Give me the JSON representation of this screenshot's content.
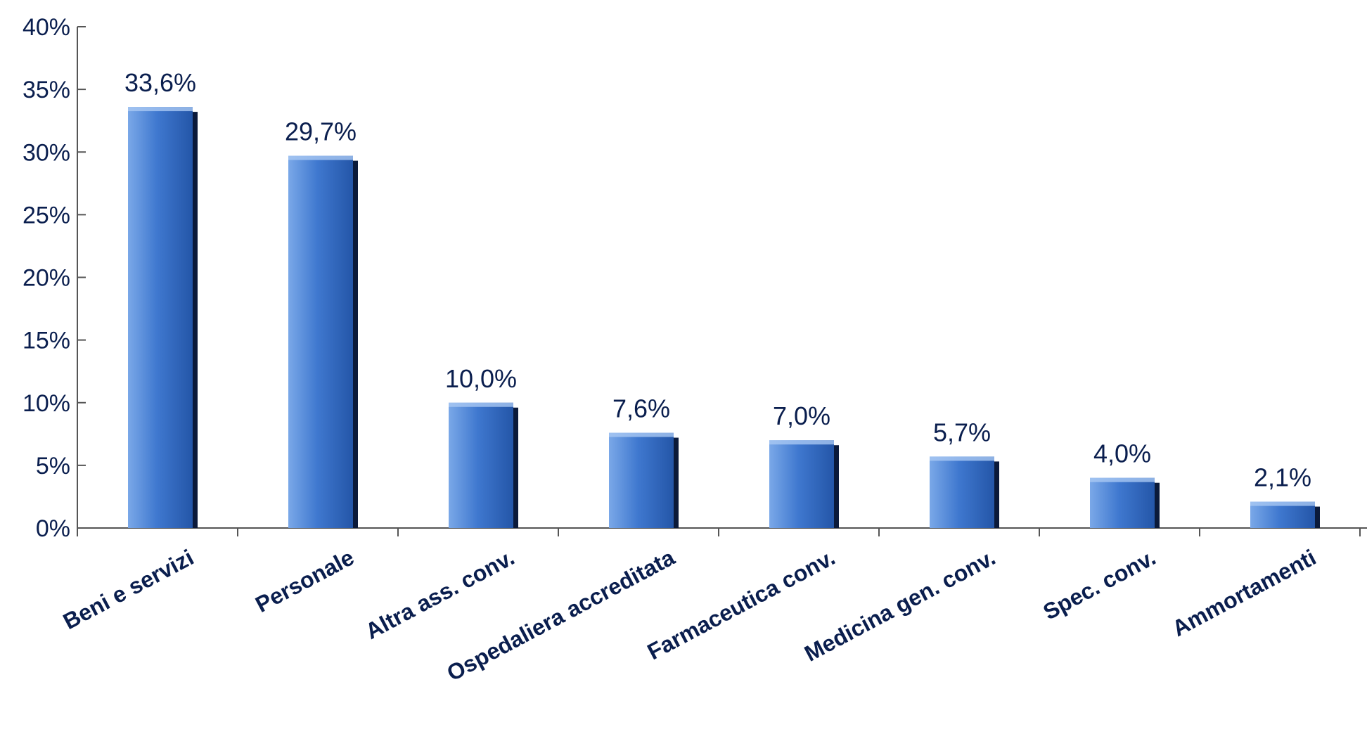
{
  "chart_data": {
    "type": "bar",
    "categories": [
      "Beni e servizi",
      "Personale",
      "Altra ass. conv.",
      "Ospedaliera accreditata",
      "Farmaceutica conv.",
      "Medicina gen. conv.",
      "Spec. conv.",
      "Ammortamenti"
    ],
    "values": [
      33.6,
      29.7,
      10.0,
      7.6,
      7.0,
      5.7,
      4.0,
      2.1
    ],
    "data_labels": [
      "33,6%",
      "29,7%",
      "10,0%",
      "7,6%",
      "7,0%",
      "5,7%",
      "4,0%",
      "2,1%"
    ],
    "ylim": [
      0,
      40
    ],
    "yticks": [
      0,
      5,
      10,
      15,
      20,
      25,
      30,
      35,
      40
    ],
    "ytick_labels": [
      "0%",
      "5%",
      "10%",
      "15%",
      "20%",
      "25%",
      "30%",
      "35%",
      "40%"
    ],
    "title": "",
    "xlabel": "",
    "ylabel": "",
    "grid": false,
    "colors": {
      "bar_top": "#7aa8e8",
      "bar_mid": "#3f78cf",
      "bar_bottom": "#2456a8",
      "bar_shadow": "#0b1a3a",
      "text": "#0a1e4e"
    }
  }
}
